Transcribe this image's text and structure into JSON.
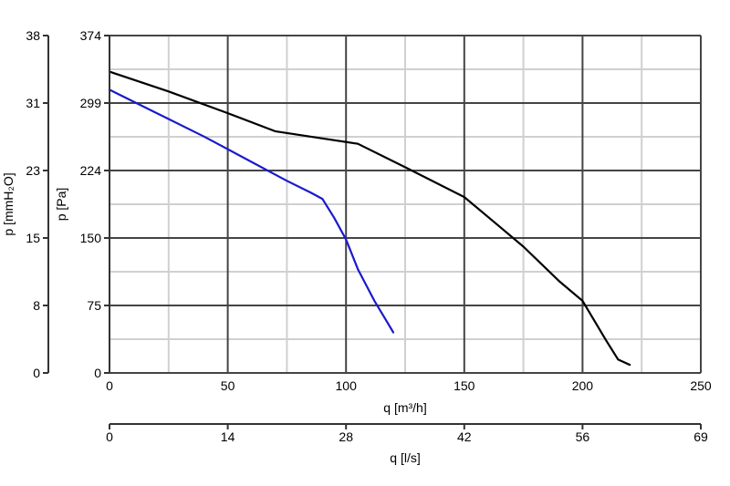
{
  "chart_data": {
    "type": "line",
    "xlabel": "q [m³/h]",
    "x2label": "q [l/s]",
    "ylabel": "p [Pa]",
    "y2label": "p [mmH₂O]",
    "xlim": [
      0,
      250
    ],
    "ylim": [
      0,
      374
    ],
    "x_ticks": [
      "0",
      "50",
      "100",
      "150",
      "200",
      "250"
    ],
    "x2_ticks": [
      "0",
      "14",
      "28",
      "42",
      "56",
      "69"
    ],
    "y_ticks": [
      "0",
      "75",
      "150",
      "224",
      "299",
      "374"
    ],
    "y2_ticks": [
      "0",
      "8",
      "15",
      "23",
      "31",
      "38"
    ],
    "grid": true,
    "series": [
      {
        "color": "#000000",
        "x": [
          0,
          25,
          50,
          70,
          90,
          105,
          125,
          150,
          165,
          175,
          190,
          200,
          210,
          215,
          220
        ],
        "y": [
          334,
          312,
          288,
          268,
          260,
          254,
          228,
          195,
          162,
          140,
          102,
          80,
          36,
          15,
          9
        ]
      },
      {
        "color": "#1a1acc",
        "x": [
          0,
          20,
          40,
          60,
          75,
          85,
          90,
          95,
          100,
          105,
          112,
          117,
          120
        ],
        "y": [
          314,
          288,
          262,
          234,
          213,
          200,
          193,
          172,
          148,
          115,
          80,
          58,
          45
        ]
      }
    ]
  }
}
